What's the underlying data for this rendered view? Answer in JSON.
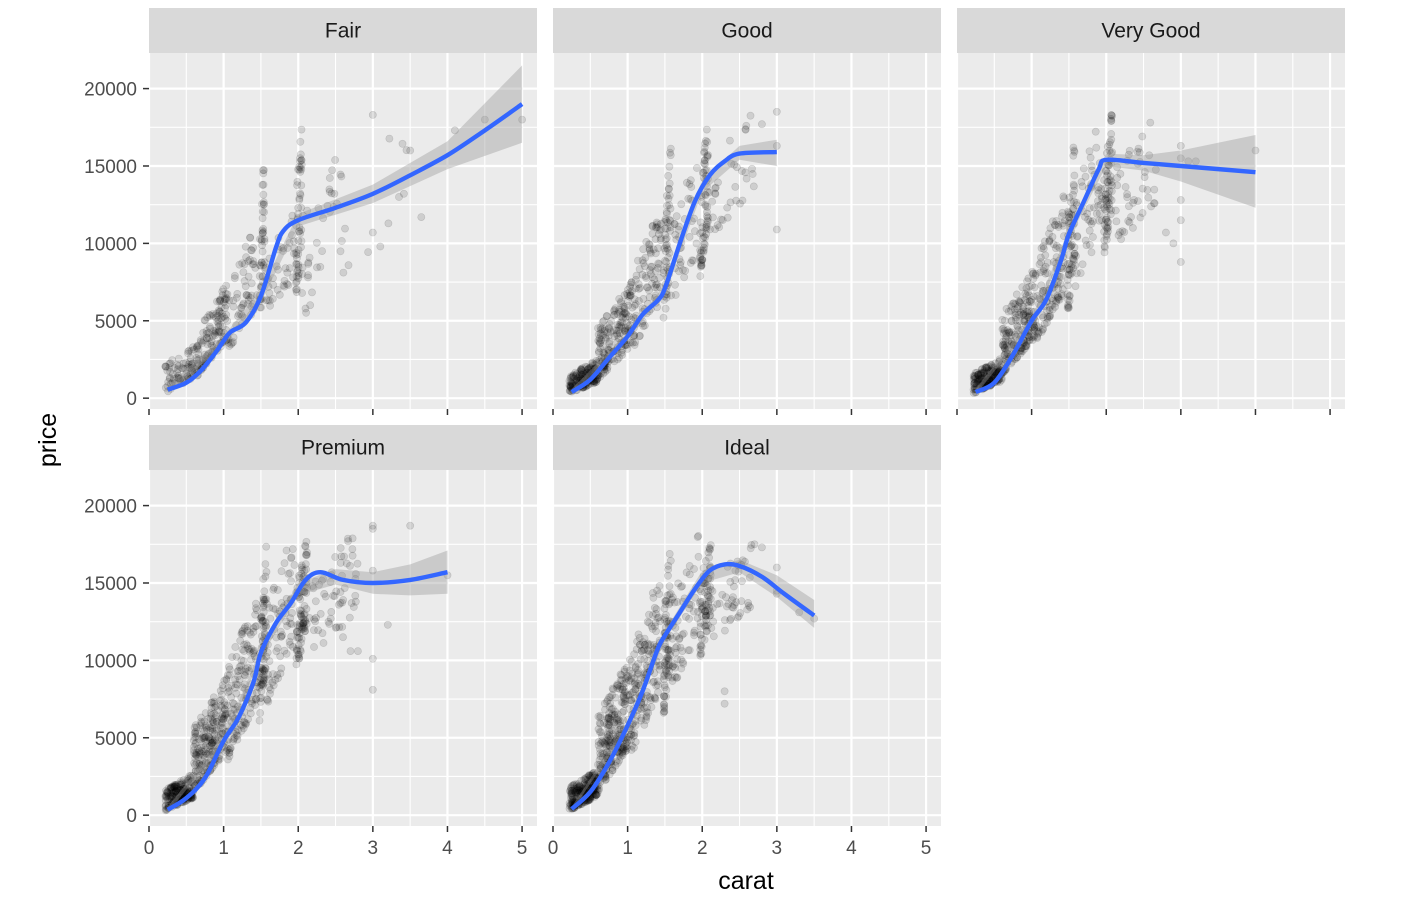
{
  "chart_data": {
    "type": "scatter",
    "layout": "faceted",
    "xlabel": "carat",
    "ylabel": "price",
    "xlim": [
      0,
      5.2
    ],
    "ylim": [
      -700,
      22300
    ],
    "x_ticks": [
      0,
      1,
      2,
      3,
      4,
      5
    ],
    "y_ticks": [
      0,
      5000,
      10000,
      15000,
      20000
    ],
    "x_tick_labels": [
      "0",
      "1",
      "2",
      "3",
      "4",
      "5"
    ],
    "y_tick_labels": [
      "0",
      "5000",
      "10000",
      "15000",
      "20000"
    ],
    "smooth_color": "#3366FF",
    "point_color": "#000000",
    "point_alpha": 0.12,
    "panel_color": "#EBEBEB",
    "strip_color": "#D9D9D9",
    "panels": [
      {
        "label": "Fair",
        "smooth": [
          [
            0.25,
            550
          ],
          [
            0.5,
            1000
          ],
          [
            0.7,
            1800
          ],
          [
            0.9,
            3000
          ],
          [
            1.0,
            3700
          ],
          [
            1.1,
            4300
          ],
          [
            1.3,
            4900
          ],
          [
            1.5,
            6600
          ],
          [
            1.7,
            9700
          ],
          [
            1.8,
            10800
          ],
          [
            2.0,
            11500
          ],
          [
            2.5,
            12300
          ],
          [
            3.0,
            13200
          ],
          [
            3.5,
            14400
          ],
          [
            4.0,
            15700
          ],
          [
            4.5,
            17300
          ],
          [
            5.0,
            19000
          ]
        ],
        "band": [
          [
            0.25,
            300,
            800
          ],
          [
            1.0,
            3400,
            4000
          ],
          [
            1.5,
            6200,
            7000
          ],
          [
            2.0,
            11100,
            11900
          ],
          [
            3.0,
            12600,
            13800
          ],
          [
            4.0,
            14800,
            16600
          ],
          [
            5.0,
            16500,
            21500
          ]
        ],
        "clusters": [
          {
            "x": [
              0.22,
              0.7
            ],
            "y": [
              350,
              3800
            ],
            "n": 90
          },
          {
            "x": [
              0.7,
              1.05
            ],
            "y": [
              1800,
              7500
            ],
            "n": 110
          },
          {
            "x": [
              1.05,
              1.45
            ],
            "y": [
              3000,
              11500
            ],
            "n": 60
          },
          {
            "x": [
              1.48,
              1.55
            ],
            "y": [
              4500,
              16500
            ],
            "n": 45
          },
          {
            "x": [
              1.55,
              1.95
            ],
            "y": [
              5500,
              12000
            ],
            "n": 40
          },
          {
            "x": [
              1.97,
              2.05
            ],
            "y": [
              6000,
              18700
            ],
            "n": 55
          },
          {
            "x": [
              2.05,
              2.6
            ],
            "y": [
              5000,
              18000
            ],
            "n": 35
          },
          {
            "x": [
              2.6,
              3.5
            ],
            "y": [
              8000,
              18500
            ],
            "n": 10
          }
        ],
        "outliers": [
          [
            3.0,
            10700
          ],
          [
            3.1,
            9800
          ],
          [
            3.5,
            16000
          ],
          [
            3.0,
            18300
          ],
          [
            3.65,
            11700
          ],
          [
            4.1,
            17300
          ],
          [
            4.5,
            18000
          ],
          [
            5.0,
            18000
          ]
        ]
      },
      {
        "label": "Good",
        "smooth": [
          [
            0.25,
            400
          ],
          [
            0.5,
            1200
          ],
          [
            0.75,
            2600
          ],
          [
            1.0,
            4000
          ],
          [
            1.2,
            5400
          ],
          [
            1.4,
            6300
          ],
          [
            1.5,
            7100
          ],
          [
            1.7,
            10000
          ],
          [
            1.9,
            12700
          ],
          [
            2.1,
            14400
          ],
          [
            2.3,
            15300
          ],
          [
            2.5,
            15800
          ],
          [
            3.0,
            15900
          ]
        ],
        "band": [
          [
            0.25,
            200,
            600
          ],
          [
            1.0,
            3800,
            4200
          ],
          [
            1.5,
            6800,
            7400
          ],
          [
            2.0,
            13300,
            14100
          ],
          [
            2.5,
            15400,
            16300
          ],
          [
            3.0,
            15000,
            16700
          ]
        ],
        "clusters": [
          {
            "x": [
              0.22,
              0.6
            ],
            "y": [
              300,
              2500
            ],
            "n": 160
          },
          {
            "x": [
              0.6,
              1.05
            ],
            "y": [
              1200,
              7500
            ],
            "n": 170
          },
          {
            "x": [
              1.05,
              1.45
            ],
            "y": [
              3000,
              12500
            ],
            "n": 100
          },
          {
            "x": [
              1.48,
              1.58
            ],
            "y": [
              4500,
              17000
            ],
            "n": 60
          },
          {
            "x": [
              1.58,
              1.95
            ],
            "y": [
              6000,
              16000
            ],
            "n": 40
          },
          {
            "x": [
              1.97,
              2.08
            ],
            "y": [
              7500,
              18800
            ],
            "n": 70
          },
          {
            "x": [
              2.08,
              2.7
            ],
            "y": [
              10000,
              18800
            ],
            "n": 35
          }
        ],
        "outliers": [
          [
            3.0,
            16300
          ],
          [
            3.0,
            18500
          ],
          [
            3.0,
            10900
          ],
          [
            2.8,
            17700
          ]
        ]
      },
      {
        "label": "Very Good",
        "smooth": [
          [
            0.25,
            400
          ],
          [
            0.5,
            1000
          ],
          [
            0.75,
            2800
          ],
          [
            1.0,
            5000
          ],
          [
            1.2,
            6400
          ],
          [
            1.4,
            9000
          ],
          [
            1.5,
            10600
          ],
          [
            1.7,
            12700
          ],
          [
            1.9,
            14800
          ],
          [
            2.0,
            15400
          ],
          [
            2.5,
            15200
          ],
          [
            3.0,
            15000
          ],
          [
            4.0,
            14600
          ]
        ],
        "band": [
          [
            0.25,
            200,
            600
          ],
          [
            1.0,
            4800,
            5200
          ],
          [
            1.5,
            10300,
            10900
          ],
          [
            2.0,
            15000,
            15800
          ],
          [
            2.5,
            14700,
            15700
          ],
          [
            3.0,
            14000,
            16000
          ],
          [
            4.0,
            12300,
            17000
          ]
        ],
        "clusters": [
          {
            "x": [
              0.22,
              0.6
            ],
            "y": [
              300,
              2600
            ],
            "n": 180
          },
          {
            "x": [
              0.6,
              1.05
            ],
            "y": [
              1500,
              8500
            ],
            "n": 190
          },
          {
            "x": [
              1.05,
              1.45
            ],
            "y": [
              3500,
              13500
            ],
            "n": 120
          },
          {
            "x": [
              1.48,
              1.58
            ],
            "y": [
              5000,
              17500
            ],
            "n": 70
          },
          {
            "x": [
              1.58,
              1.95
            ],
            "y": [
              7000,
              18500
            ],
            "n": 55
          },
          {
            "x": [
              1.97,
              2.08
            ],
            "y": [
              9000,
              18800
            ],
            "n": 75
          },
          {
            "x": [
              2.08,
              2.7
            ],
            "y": [
              9500,
              18800
            ],
            "n": 45
          }
        ],
        "outliers": [
          [
            2.9,
            10000
          ],
          [
            3.0,
            12800
          ],
          [
            3.0,
            11500
          ],
          [
            3.0,
            8800
          ],
          [
            3.0,
            15500
          ],
          [
            3.0,
            16300
          ],
          [
            4.0,
            16000
          ],
          [
            3.1,
            15300
          ],
          [
            2.8,
            10700
          ],
          [
            3.2,
            15300
          ]
        ]
      },
      {
        "label": "Premium",
        "smooth": [
          [
            0.25,
            350
          ],
          [
            0.5,
            1100
          ],
          [
            0.75,
            2400
          ],
          [
            1.0,
            4800
          ],
          [
            1.2,
            6300
          ],
          [
            1.4,
            8600
          ],
          [
            1.5,
            10500
          ],
          [
            1.7,
            12400
          ],
          [
            1.9,
            13700
          ],
          [
            2.1,
            15200
          ],
          [
            2.3,
            15700
          ],
          [
            2.6,
            15200
          ],
          [
            3.0,
            15000
          ],
          [
            3.5,
            15200
          ],
          [
            4.0,
            15700
          ]
        ],
        "band": [
          [
            0.25,
            150,
            550
          ],
          [
            1.0,
            4600,
            5000
          ],
          [
            1.5,
            10200,
            10800
          ],
          [
            2.0,
            14200,
            15000
          ],
          [
            2.5,
            14900,
            15900
          ],
          [
            3.0,
            14300,
            15700
          ],
          [
            3.5,
            14200,
            16200
          ],
          [
            4.0,
            14300,
            17100
          ]
        ],
        "clusters": [
          {
            "x": [
              0.22,
              0.6
            ],
            "y": [
              300,
              2700
            ],
            "n": 200
          },
          {
            "x": [
              0.6,
              1.05
            ],
            "y": [
              1500,
              9000
            ],
            "n": 210
          },
          {
            "x": [
              1.05,
              1.45
            ],
            "y": [
              3500,
              14500
            ],
            "n": 140
          },
          {
            "x": [
              1.48,
              1.58
            ],
            "y": [
              6000,
              18000
            ],
            "n": 80
          },
          {
            "x": [
              1.58,
              1.95
            ],
            "y": [
              7000,
              18700
            ],
            "n": 70
          },
          {
            "x": [
              1.97,
              2.12
            ],
            "y": [
              9000,
              18800
            ],
            "n": 90
          },
          {
            "x": [
              2.12,
              2.8
            ],
            "y": [
              10000,
              18800
            ],
            "n": 60
          }
        ],
        "outliers": [
          [
            3.0,
            18700
          ],
          [
            3.0,
            18500
          ],
          [
            3.0,
            15800
          ],
          [
            3.0,
            10100
          ],
          [
            3.0,
            8100
          ],
          [
            3.2,
            12300
          ],
          [
            3.5,
            18700
          ],
          [
            4.0,
            15500
          ],
          [
            2.8,
            10600
          ],
          [
            2.7,
            10600
          ],
          [
            2.6,
            11500
          ]
        ]
      },
      {
        "label": "Ideal",
        "smooth": [
          [
            0.25,
            400
          ],
          [
            0.5,
            1500
          ],
          [
            0.75,
            3400
          ],
          [
            1.0,
            5800
          ],
          [
            1.2,
            8000
          ],
          [
            1.4,
            10700
          ],
          [
            1.5,
            11600
          ],
          [
            1.7,
            13100
          ],
          [
            1.9,
            14600
          ],
          [
            2.1,
            15800
          ],
          [
            2.3,
            16200
          ],
          [
            2.5,
            16100
          ],
          [
            2.8,
            15400
          ],
          [
            3.1,
            14300
          ],
          [
            3.5,
            12900
          ]
        ],
        "band": [
          [
            0.25,
            250,
            550
          ],
          [
            1.0,
            5600,
            6000
          ],
          [
            1.5,
            11300,
            11900
          ],
          [
            2.0,
            15000,
            15800
          ],
          [
            2.5,
            15700,
            16500
          ],
          [
            3.0,
            14100,
            15500
          ],
          [
            3.5,
            12100,
            13900
          ]
        ],
        "clusters": [
          {
            "x": [
              0.22,
              0.6
            ],
            "y": [
              300,
              3000
            ],
            "n": 230
          },
          {
            "x": [
              0.6,
              1.05
            ],
            "y": [
              1500,
              10500
            ],
            "n": 250
          },
          {
            "x": [
              1.05,
              1.45
            ],
            "y": [
              4000,
              16000
            ],
            "n": 150
          },
          {
            "x": [
              1.48,
              1.58
            ],
            "y": [
              6000,
              18000
            ],
            "n": 80
          },
          {
            "x": [
              1.58,
              1.95
            ],
            "y": [
              8000,
              18500
            ],
            "n": 60
          },
          {
            "x": [
              1.97,
              2.12
            ],
            "y": [
              10000,
              18800
            ],
            "n": 80
          },
          {
            "x": [
              2.12,
              2.7
            ],
            "y": [
              11000,
              18700
            ],
            "n": 45
          }
        ],
        "outliers": [
          [
            3.0,
            14500
          ],
          [
            3.0,
            16000
          ],
          [
            3.0,
            14300
          ],
          [
            3.3,
            13100
          ],
          [
            3.5,
            12700
          ],
          [
            2.8,
            17300
          ],
          [
            2.7,
            17500
          ],
          [
            2.3,
            7200
          ],
          [
            2.3,
            8000
          ]
        ]
      }
    ]
  }
}
